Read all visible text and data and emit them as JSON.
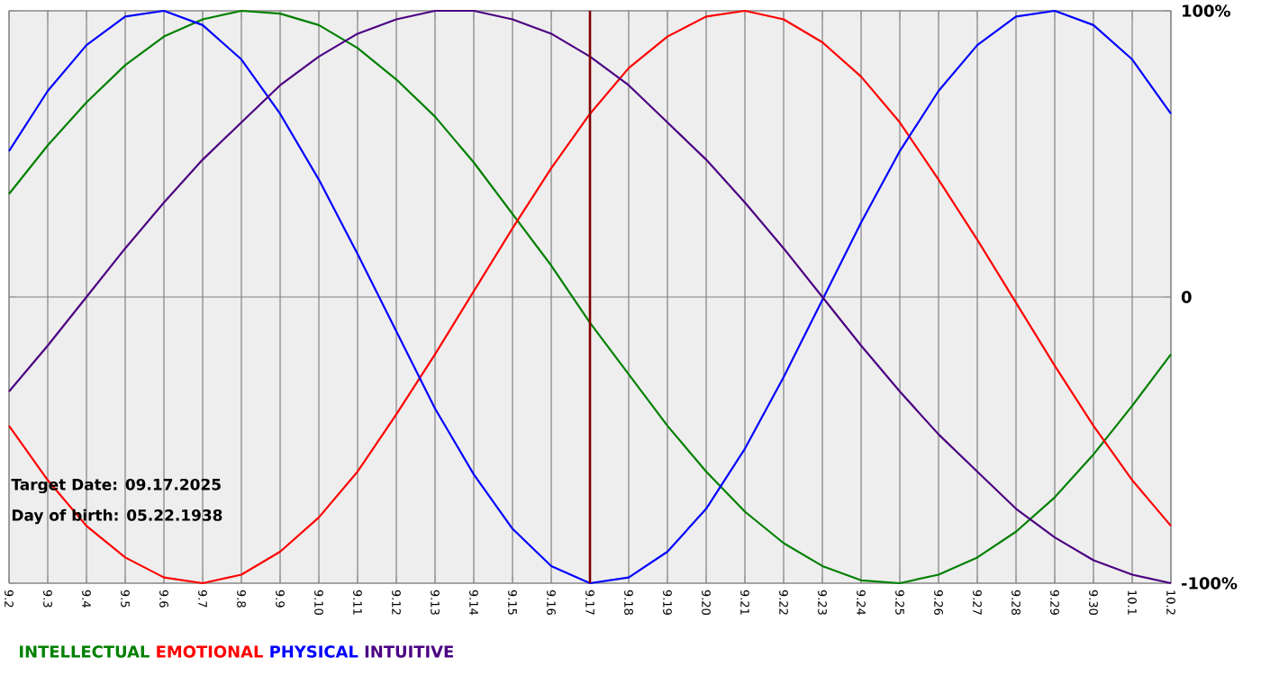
{
  "chart_data": {
    "type": "line",
    "categories": [
      "9.2",
      "9.3",
      "9.4",
      "9.5",
      "9.6",
      "9.7",
      "9.8",
      "9.9",
      "9.10",
      "9.11",
      "9.12",
      "9.13",
      "9.14",
      "9.15",
      "9.16",
      "9.17",
      "9.18",
      "9.19",
      "9.20",
      "9.21",
      "9.22",
      "9.23",
      "9.24",
      "9.25",
      "9.26",
      "9.27",
      "9.28",
      "9.29",
      "9.30",
      "10.1",
      "10.2"
    ],
    "series": [
      {
        "name": "INTELLECTUAL",
        "color": "#008000",
        "values": [
          36,
          53,
          68,
          81,
          91,
          97,
          100,
          99,
          95,
          87,
          76,
          63,
          47,
          29,
          11,
          -9,
          -27,
          -45,
          -61,
          -75,
          -86,
          -94,
          -99,
          -100,
          -97,
          -91,
          -82,
          -70,
          -55,
          -38,
          -20
        ]
      },
      {
        "name": "EMOTIONAL",
        "color": "#ff0000",
        "values": [
          -45,
          -64,
          -80,
          -91,
          -98,
          -100,
          -97,
          -89,
          -77,
          -61,
          -41,
          -20,
          2,
          24,
          45,
          64,
          80,
          91,
          98,
          100,
          97,
          89,
          77,
          61,
          41,
          20,
          -2,
          -24,
          -45,
          -64,
          -80
        ]
      },
      {
        "name": "PHYSICAL",
        "color": "#0000ff",
        "values": [
          51,
          72,
          88,
          98,
          100,
          95,
          83,
          64,
          41,
          15,
          -12,
          -39,
          -62,
          -81,
          -94,
          -100,
          -98,
          -89,
          -74,
          -53,
          -28,
          -1,
          26,
          51,
          72,
          88,
          98,
          100,
          95,
          83,
          64
        ]
      },
      {
        "name": "INTUITIVE",
        "color": "#4b0082",
        "values": [
          -33,
          -17,
          0,
          17,
          33,
          48,
          61,
          74,
          84,
          92,
          97,
          100,
          100,
          97,
          92,
          84,
          74,
          61,
          48,
          33,
          17,
          0,
          -17,
          -33,
          -48,
          -61,
          -74,
          -84,
          -92,
          -97,
          -100
        ]
      }
    ],
    "ylim": [
      -100,
      100
    ],
    "yticks": [
      {
        "value": -100,
        "label": "-100%"
      },
      0,
      {
        "value": 100,
        "label": "100%"
      }
    ],
    "grid": true,
    "legend": "bottom",
    "line_style": "solid",
    "ref_lines": [
      {
        "axis": "x",
        "value": "9.17",
        "color": "#800000"
      }
    ],
    "annotations": [
      "Target Date: 09.17.2025",
      "Day of birth: 05.22.1938"
    ]
  }
}
